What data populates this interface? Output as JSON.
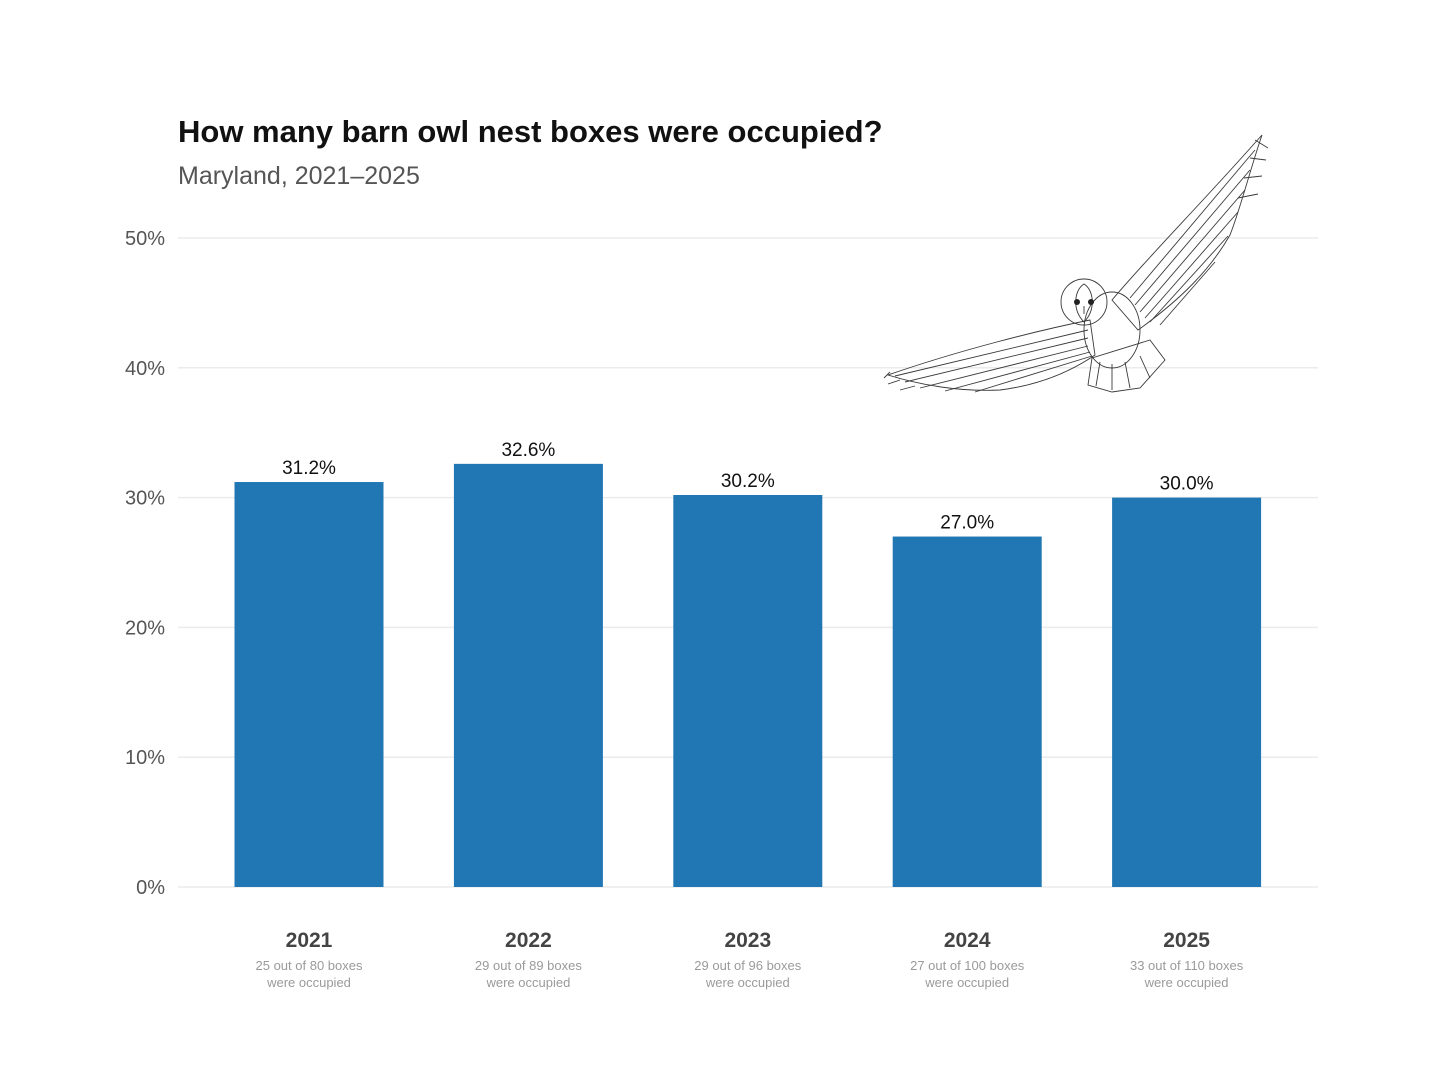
{
  "chart_data": {
    "type": "bar",
    "title": "How many barn owl nest boxes were occupied?",
    "subtitle": "Maryland, 2021–2025",
    "xlabel": "",
    "ylabel": "",
    "ylim": [
      0,
      50
    ],
    "y_ticks": [
      0,
      10,
      20,
      30,
      40,
      50
    ],
    "y_tick_labels": [
      "0%",
      "10%",
      "20%",
      "30%",
      "40%",
      "50%"
    ],
    "grid": true,
    "categories": [
      "2021",
      "2022",
      "2023",
      "2024",
      "2025"
    ],
    "values": [
      31.2,
      32.6,
      30.2,
      27.0,
      30.0
    ],
    "value_labels": [
      "31.2%",
      "32.6%",
      "30.2%",
      "27.0%",
      "30.0%"
    ],
    "notes": [
      [
        "25 out of 80 boxes",
        "were occupied"
      ],
      [
        "29 out of 89 boxes",
        "were occupied"
      ],
      [
        "29 out of 96 boxes",
        "were occupied"
      ],
      [
        "27 out of 100 boxes",
        "were occupied"
      ],
      [
        "33 out of 110 boxes",
        "were occupied"
      ]
    ],
    "bar_color": "#2077b4",
    "illustration": "barn-owl-illustration"
  }
}
